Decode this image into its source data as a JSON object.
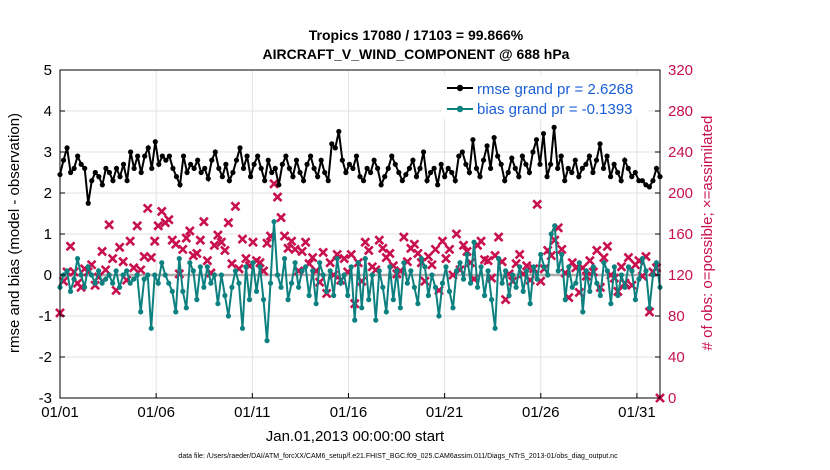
{
  "chart_data": {
    "type": "line",
    "title": "Tropics 17080 / 17103 = 99.866%",
    "subtitle": "AIRCRAFT_V_WIND_COMPONENT @ 688 hPa",
    "xlabel": "Jan.01,2013 00:00:00 start",
    "ylabel": "rmse and bias (model - observation)",
    "y2label": "# of obs: o=possible; ×=assimilated",
    "footnote": "data file: /Users/raeder/DAI/ATM_forcXX/CAM6_setup/f.e21.FHIST_BGC.f09_025.CAM6assim.011/Diags_NTrS_2013-01/obs_diag_output.nc",
    "x_tick_labels": [
      "01/01",
      "01/06",
      "01/11",
      "01/16",
      "01/21",
      "01/26",
      "01/31"
    ],
    "x_tick_days": [
      0,
      5,
      10,
      15,
      20,
      25,
      30
    ],
    "xlim": [
      0,
      31.2
    ],
    "ylim": [
      -3,
      5
    ],
    "y_ticks": [
      "-3",
      "-2",
      "-1",
      "0",
      "1",
      "2",
      "3",
      "4",
      "5"
    ],
    "y2lim": [
      0,
      320
    ],
    "y2_ticks": [
      "0",
      "40",
      "80",
      "120",
      "160",
      "200",
      "240",
      "280",
      "320"
    ],
    "grid": true,
    "legend_position": "top-right",
    "legend": [
      {
        "label": "rmse grand pr = 2.6268",
        "color": "#000000"
      },
      {
        "label": "bias grand pr = -0.1393",
        "color": "#0d8080"
      }
    ],
    "zero_line": {
      "value": 0,
      "color": "#aaaaaa"
    },
    "series": [
      {
        "name": "rmse",
        "color": "#000000",
        "axis": "left",
        "values": [
          2.45,
          2.8,
          3.1,
          2.5,
          2.6,
          2.9,
          2.7,
          2.6,
          1.75,
          2.3,
          2.5,
          2.4,
          2.2,
          2.6,
          2.5,
          2.3,
          2.6,
          2.4,
          2.7,
          2.3,
          3.0,
          2.6,
          2.9,
          2.5,
          2.9,
          3.1,
          2.6,
          3.25,
          2.7,
          2.9,
          2.8,
          2.9,
          2.6,
          2.4,
          2.2,
          2.9,
          2.5,
          2.7,
          2.6,
          2.8,
          2.5,
          2.6,
          2.35,
          2.8,
          3.0,
          2.6,
          2.4,
          2.7,
          2.3,
          2.5,
          2.8,
          3.1,
          2.6,
          2.9,
          2.4,
          2.7,
          2.9,
          2.6,
          2.3,
          2.8,
          2.5,
          2.6,
          2.2,
          2.7,
          2.9,
          2.6,
          2.4,
          2.8,
          2.5,
          2.3,
          2.7,
          2.9,
          2.6,
          2.4,
          2.8,
          2.5,
          2.3,
          3.2,
          3.1,
          3.5,
          2.8,
          2.5,
          2.7,
          2.6,
          2.9,
          2.4,
          2.3,
          2.6,
          2.5,
          2.8,
          2.6,
          2.2,
          2.4,
          2.6,
          2.9,
          2.7,
          2.5,
          2.3,
          2.45,
          2.6,
          2.8,
          2.4,
          2.6,
          3.0,
          2.3,
          2.5,
          2.6,
          2.2,
          2.7,
          2.4,
          2.6,
          2.5,
          2.3,
          2.9,
          3.0,
          2.7,
          2.5,
          3.3,
          2.6,
          2.4,
          2.8,
          3.15,
          2.6,
          3.35,
          2.9,
          2.7,
          2.3,
          2.5,
          2.85,
          2.6,
          2.4,
          2.9,
          2.7,
          2.5,
          3.0,
          3.3,
          2.7,
          3.45,
          2.4,
          2.7,
          3.6,
          2.6,
          2.9,
          2.3,
          2.6,
          2.5,
          2.8,
          2.4,
          2.6,
          2.7,
          2.9,
          2.5,
          2.8,
          3.2,
          2.6,
          2.9,
          2.4,
          2.7,
          2.5,
          2.3,
          2.8,
          2.6,
          2.4,
          2.5,
          2.3,
          2.3,
          2.2,
          2.15,
          2.3,
          2.6,
          2.4
        ]
      },
      {
        "name": "bias",
        "color": "#0d8080",
        "axis": "left",
        "values": [
          -0.3,
          0.0,
          0.1,
          -0.4,
          -0.1,
          0.4,
          0.0,
          -0.3,
          0.2,
          0.0,
          -0.2,
          0.1,
          -0.2,
          -0.1,
          0.0,
          -0.2,
          0.1,
          -0.3,
          0.0,
          0.1,
          -0.2,
          -0.1,
          0.0,
          -0.9,
          -0.1,
          0.0,
          -1.3,
          0.0,
          -0.2,
          0.3,
          0.0,
          -0.2,
          -0.4,
          -0.9,
          0.4,
          -0.4,
          -0.8,
          0.3,
          0.1,
          -0.6,
          0.2,
          -0.3,
          0.2,
          -0.2,
          0.0,
          -0.7,
          0.0,
          -0.5,
          -1.0,
          -0.3,
          0.1,
          -0.2,
          -1.3,
          0.2,
          -0.6,
          0.3,
          -0.4,
          0.2,
          -0.6,
          -1.6,
          -0.2,
          1.3,
          0.0,
          -0.3,
          0.4,
          -0.6,
          -0.2,
          0.3,
          -0.3,
          0.1,
          0.2,
          -0.5,
          0.1,
          -0.7,
          0.3,
          0.0,
          -0.4,
          0.1,
          -0.5,
          0.4,
          -0.2,
          0.0,
          -0.5,
          0.2,
          -1.1,
          0.3,
          -0.8,
          0.4,
          -0.6,
          0.0,
          -1.1,
          0.1,
          -0.3,
          -0.9,
          0.2,
          -0.6,
          0.1,
          -0.8,
          0.3,
          -0.2,
          0.1,
          -0.3,
          -0.7,
          0.4,
          0.2,
          -0.5,
          0.0,
          -0.3,
          -1.0,
          -0.2,
          0.2,
          -0.4,
          -0.8,
          0.1,
          0.3,
          -0.1,
          0.5,
          -0.2,
          0.8,
          -0.3,
          0.2,
          -0.5,
          0.1,
          -0.6,
          -1.3,
          0.4,
          -0.2,
          0.1,
          -0.5,
          0.0,
          -0.3,
          0.2,
          -0.4,
          0.1,
          -0.7,
          0.2,
          -0.1,
          0.5,
          0.2,
          0.0,
          1.0,
          1.2,
          0.1,
          0.5,
          -0.6,
          0.2,
          -0.3,
          -0.2,
          0.3,
          -0.9,
          0.1,
          -0.4,
          0.2,
          -0.2,
          -0.5,
          0.3,
          0.1,
          -0.7,
          0.2,
          -0.5,
          0.0,
          -0.3,
          0.2,
          0.1,
          -0.6,
          -0.1,
          0.4,
          0.1,
          -0.8,
          0.0,
          0.3,
          -0.3
        ]
      },
      {
        "name": "assimilated",
        "color": "#c8104f",
        "axis": "right",
        "marker": "x",
        "values": [
          83,
          114,
          123,
          148,
          123,
          112,
          108,
          126,
          123,
          130,
          110,
          118,
          143,
          125,
          169,
          136,
          105,
          147,
          133,
          115,
          153,
          127,
          168,
          125,
          138,
          185,
          137,
          153,
          168,
          182,
          171,
          174,
          154,
          150,
          121,
          145,
          156,
          163,
          139,
          141,
          154,
          172,
          134,
          122,
          149,
          159,
          152,
          144,
          171,
          131,
          187,
          126,
          155,
          136,
          129,
          152,
          134,
          132,
          124,
          151,
          158,
          209,
          196,
          176,
          158,
          146,
          153,
          145,
          124,
          143,
          152,
          131,
          137,
          124,
          113,
          142,
          102,
          132,
          120,
          140,
          115,
          136,
          123,
          140,
          92,
          132,
          114,
          152,
          144,
          128,
          125,
          154,
          146,
          137,
          141,
          129,
          121,
          124,
          157,
          133,
          146,
          150,
          141,
          132,
          114,
          138,
          130,
          145,
          105,
          153,
          136,
          145,
          120,
          160,
          125,
          149,
          143,
          132,
          116,
          149,
          153,
          135,
          134,
          117,
          139,
          157,
          133,
          96,
          121,
          114,
          131,
          140,
          121,
          129,
          115,
          126,
          189,
          114,
          126,
          144,
          139,
          154,
          166,
          145,
          122,
          98,
          132,
          127,
          103,
          127,
          119,
          134,
          123,
          144,
          108,
          137,
          148,
          120,
          117,
          104,
          128,
          112,
          137,
          110,
          130,
          134,
          119,
          138,
          84,
          123,
          127,
          0
        ]
      }
    ]
  }
}
